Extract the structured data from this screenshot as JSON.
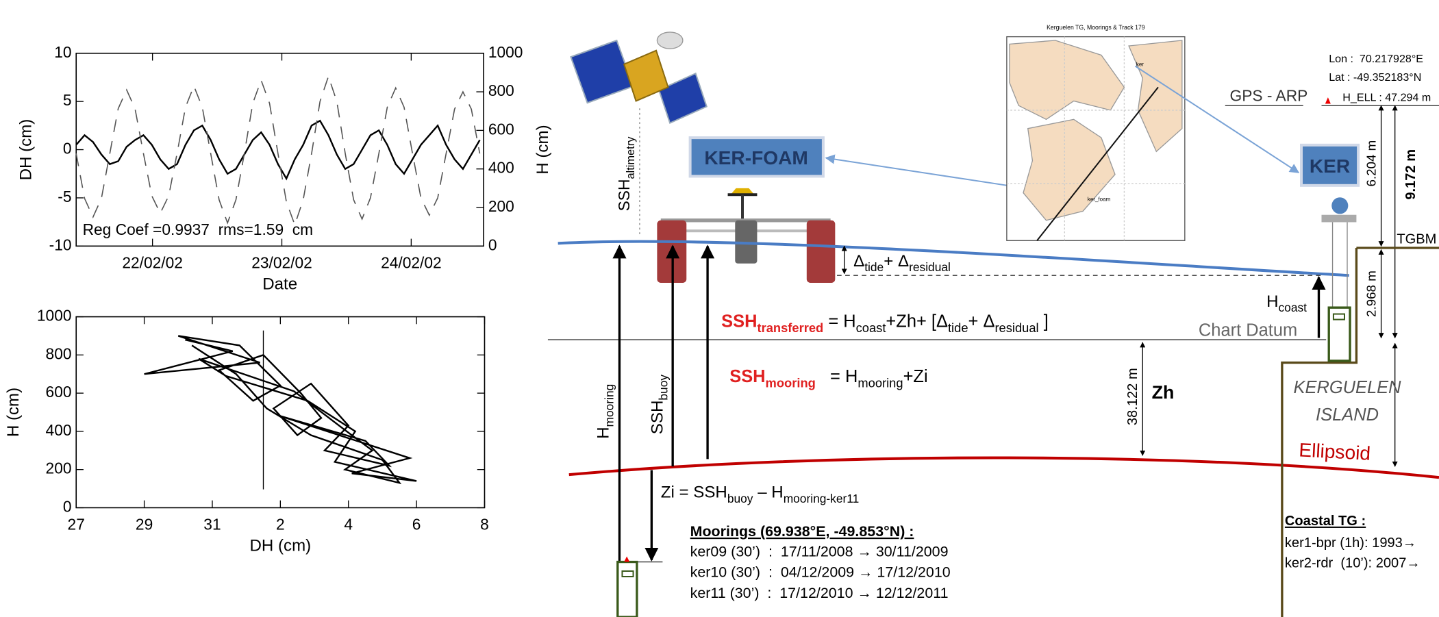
{
  "chart_data": [
    {
      "type": "line",
      "xlabel": "Date",
      "ylabel": "DH (cm)",
      "y2label": "H (cm)",
      "annotation": "Reg Coef =0.9937  rms=1.59  cm",
      "x": [
        21.41,
        21.475,
        21.54,
        21.605,
        21.67,
        21.735,
        21.8,
        21.865,
        21.93,
        21.995,
        22.06,
        22.125,
        22.19,
        22.255,
        22.32,
        22.385,
        22.45,
        22.515,
        22.58,
        22.645,
        22.71,
        22.775,
        22.84,
        22.905,
        22.97,
        23.035,
        23.1,
        23.165,
        23.23,
        23.295,
        23.36,
        23.425,
        23.49,
        23.555,
        23.62,
        23.685,
        23.75,
        23.815,
        23.88,
        23.945,
        24.01,
        24.075,
        24.14,
        24.205,
        24.27,
        24.335,
        24.4,
        24.465,
        24.53
      ],
      "xlim": [
        21.41,
        24.56
      ],
      "xticks": [
        {
          "value": 22,
          "label": "22/02/02"
        },
        {
          "value": 23,
          "label": "23/02/02"
        },
        {
          "value": 24,
          "label": "24/02/02"
        }
      ],
      "ylim": [
        -10,
        10
      ],
      "yticks": [
        -10,
        -5,
        0,
        5,
        10
      ],
      "y2lim": [
        0,
        1000
      ],
      "y2ticks": [
        0,
        200,
        400,
        600,
        800,
        1000
      ],
      "series": [
        {
          "color": "#000000",
          "values": [
            0.5,
            1.5,
            0.8,
            -0.5,
            -1.5,
            -1.2,
            0.3,
            1.0,
            1.5,
            0.5,
            -1.0,
            -2.0,
            -1.5,
            0.5,
            2.0,
            2.5,
            1.0,
            -1.0,
            -2.5,
            -2.0,
            -0.5,
            1.0,
            1.8,
            0.5,
            -1.5,
            -3.0,
            -1.0,
            0.5,
            2.5,
            3.0,
            1.5,
            -0.5,
            -2.0,
            -1.5,
            0.0,
            1.5,
            2.0,
            0.5,
            -1.5,
            -2.5,
            -1.0,
            0.5,
            1.5,
            2.5,
            0.5,
            -1.0,
            -2.0,
            -0.5,
            1.0
          ]
        },
        {
          "color": "#555555",
          "axis": "y2",
          "dashed": true,
          "values": [
            480,
            247,
            150,
            247,
            480,
            713,
            810,
            713,
            480,
            260,
            170,
            260,
            480,
            720,
            830,
            720,
            480,
            240,
            120,
            240,
            480,
            740,
            860,
            740,
            480,
            230,
            110,
            240,
            480,
            750,
            880,
            750,
            480,
            240,
            140,
            250,
            480,
            720,
            820,
            720,
            480,
            250,
            160,
            250,
            480,
            710,
            800,
            710,
            480
          ]
        }
      ]
    },
    {
      "type": "line",
      "xlabel": "DH (cm)",
      "ylabel": "H (cm)",
      "x": [
        30.2,
        31.6,
        29.0,
        32.4,
        30.0,
        31.8,
        33.0,
        32.2,
        31.2,
        32.5,
        33.6,
        34.2,
        33.5,
        32.8,
        33.9,
        35.0,
        34.3,
        36.2,
        35.5,
        33.0,
        36.8,
        35.1,
        37.0,
        34.6,
        35.2,
        33.8,
        31.4,
        30.6,
        33.4,
        34.8,
        35.7,
        34.9,
        36.5,
        36.0,
        33.9,
        32.6,
        31.7,
        30.4
      ],
      "xlim": [
        27,
        39
      ],
      "xticks": [
        27,
        29,
        31,
        {
          "value": 33,
          "label": "2"
        },
        {
          "value": 35,
          "label": "4"
        },
        {
          "value": 37,
          "label": "6"
        },
        {
          "value": 39,
          "label": "8"
        }
      ],
      "ylim": [
        0,
        1000
      ],
      "yticks": [
        0,
        200,
        400,
        600,
        800,
        1000
      ],
      "reference_x": 32.5,
      "series": [
        {
          "color": "#000000",
          "values": [
            880,
            820,
            700,
            760,
            900,
            850,
            640,
            560,
            720,
            800,
            600,
            470,
            380,
            520,
            650,
            430,
            300,
            220,
            350,
            480,
            260,
            180,
            140,
            240,
            400,
            560,
            690,
            780,
            610,
            420,
            300,
            200,
            130,
            250,
            380,
            520,
            700,
            850
          ]
        }
      ]
    }
  ],
  "diagram": {
    "satellite_label": [
      "SSH",
      "altimetry"
    ],
    "ker_foam": "KER-FOAM",
    "ker": "KER",
    "map_title": "Kerguelen TG, Moorings & Track 179",
    "map_labels": [
      "ker",
      "ker_foam"
    ],
    "gps_arp": "GPS - ARP",
    "lon": "Lon :  70.217928°E",
    "lat": "Lat : -49.352183°N",
    "h_ell": "H_ELL : 47.294 m",
    "dimensions": [
      "6.204 m",
      "9.172 m",
      "2.968 m",
      "38.122 m"
    ],
    "tgbm": "TGBM",
    "tide_residual": [
      "Δ",
      "tide",
      "+ Δ",
      "residual"
    ],
    "h_coast": [
      "H",
      "coast"
    ],
    "chart_datum": "Chart Datum",
    "ssh_transferred": [
      "SSH",
      "transferred",
      " = H",
      "coast",
      "+Zh+ [Δ",
      "tide",
      "+ Δ",
      "residual",
      " ]"
    ],
    "ssh_mooring": [
      "SSH",
      "mooring",
      "   = H",
      "mooring",
      "+Zi"
    ],
    "h_mooring": [
      "H",
      "mooring"
    ],
    "ssh_buoy": [
      "SSH",
      "buoy"
    ],
    "zh": "Zh",
    "island": [
      "KERGUELEN",
      "ISLAND"
    ],
    "ellipsoid": "Ellipsoid",
    "zi": [
      "Zi = SSH",
      "buoy",
      " – H",
      "mooring-ker11"
    ],
    "moorings_title": "Moorings (69.938°E, -49.853°N) :",
    "moorings": [
      "ker09 (30’)  :  17/11/2008 → 30/11/2009",
      "ker10 (30’)  :  04/12/2009 → 17/12/2010",
      "ker11 (30’)  :  17/12/2010 → 12/12/2011"
    ],
    "coastal_title": "Coastal TG :",
    "coastal": [
      "ker1-bpr (1h): 1993→",
      "ker2-rdr  (10’): 2007→"
    ]
  }
}
